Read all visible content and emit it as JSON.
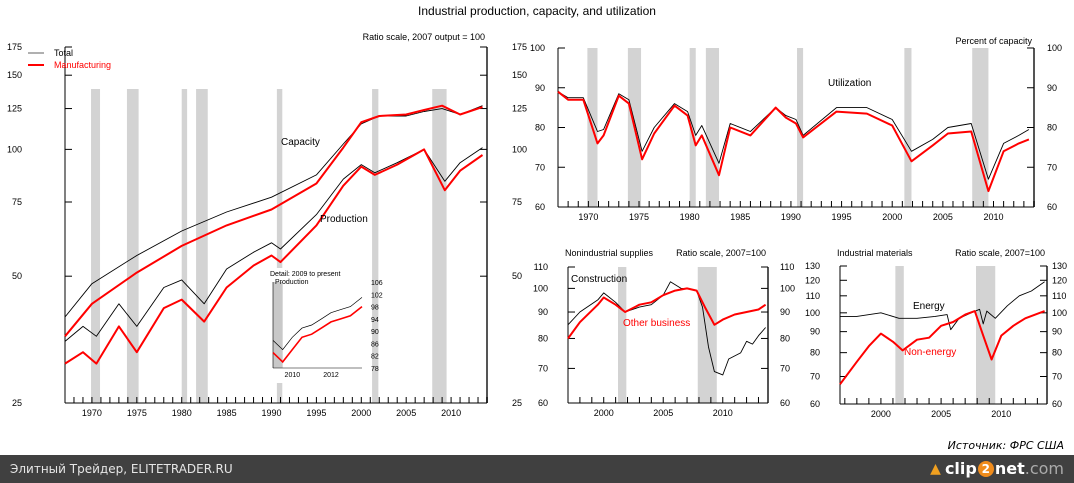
{
  "title": "Industrial production, capacity, and utilization",
  "source": "Источник: ФРС США",
  "footer": {
    "left": "Элитный Трейдер, ELITETRADER.RU",
    "logo_a": "clip",
    "logo_2": "2",
    "logo_b": "net",
    "logo_c": ".com"
  },
  "colors": {
    "total": "#000000",
    "manufacturing": "#ff0000",
    "recession": "#d3d3d3",
    "legend_total": "#b0b0b0"
  },
  "chart_data": [
    {
      "id": "main",
      "type": "line",
      "scale": "log",
      "note": "Ratio scale, 2007 output = 100",
      "legend": [
        {
          "name": "Total",
          "color": "#000000"
        },
        {
          "name": "Manufacturing",
          "color": "#ff0000"
        }
      ],
      "legend_position": "top-left",
      "annotations": [
        "Capacity",
        "Production"
      ],
      "xlim": [
        1967,
        2014
      ],
      "ylim": [
        25,
        175
      ],
      "y_ticks": [
        25,
        50,
        75,
        100,
        125,
        150,
        175
      ],
      "x_ticks": [
        1970,
        1975,
        1980,
        1985,
        1990,
        1995,
        2000,
        2005,
        2010
      ],
      "recessions": [
        [
          1969.9,
          1970.9
        ],
        [
          1973.9,
          1975.2
        ],
        [
          1980.0,
          1980.6
        ],
        [
          1981.6,
          1982.9
        ],
        [
          1990.6,
          1991.2
        ],
        [
          2001.2,
          2001.9
        ],
        [
          2007.9,
          2009.5
        ]
      ],
      "series": [
        {
          "name": "Total capacity",
          "color": "#000000",
          "x": [
            1967,
            1970,
            1975,
            1980,
            1985,
            1990,
            1995,
            1998,
            2000,
            2002,
            2005,
            2007,
            2009,
            2011,
            2013.5
          ],
          "y": [
            40,
            48,
            56,
            64,
            71,
            77,
            87,
            103,
            115,
            120,
            120,
            123,
            125,
            121,
            127
          ]
        },
        {
          "name": "Manufacturing capacity",
          "color": "#ff0000",
          "x": [
            1967,
            1970,
            1975,
            1980,
            1985,
            1990,
            1995,
            1998,
            2000,
            2002,
            2005,
            2007,
            2009,
            2011,
            2013.5
          ],
          "y": [
            36,
            43,
            51,
            59,
            66,
            72,
            83,
            101,
            116,
            120,
            121,
            124,
            127,
            121,
            126
          ]
        },
        {
          "name": "Total production",
          "color": "#000000",
          "x": [
            1967,
            1969,
            1970.5,
            1973,
            1975,
            1978,
            1980,
            1982.5,
            1985,
            1988,
            1990,
            1991,
            1995,
            1998,
            2000,
            2001.5,
            2004,
            2007,
            2009.3,
            2011,
            2013.5
          ],
          "y": [
            35,
            38,
            36,
            43,
            38,
            47,
            49,
            43,
            52,
            57,
            60,
            58,
            70,
            85,
            92,
            88,
            93,
            100,
            84,
            93,
            101
          ]
        },
        {
          "name": "Manufacturing production",
          "color": "#ff0000",
          "x": [
            1967,
            1969,
            1970.5,
            1973,
            1975,
            1978,
            1980,
            1982.5,
            1985,
            1988,
            1990,
            1991,
            1995,
            1998,
            2000,
            2001.5,
            2004,
            2007,
            2009.3,
            2011,
            2013.5
          ],
          "y": [
            31,
            33,
            31,
            38,
            33,
            42,
            44,
            39,
            47,
            53,
            56,
            54,
            66,
            82,
            91,
            87,
            92,
            100,
            80,
            89,
            97
          ]
        }
      ],
      "inset": {
        "title": "Detail: 2009 to present",
        "label": "Production",
        "xlim": [
          2009,
          2013.6
        ],
        "ylim": [
          78,
          106
        ],
        "y_ticks": [
          78,
          82,
          86,
          90,
          94,
          98,
          102,
          106
        ],
        "x_ticks": [
          2010,
          2012
        ],
        "recessions": [
          [
            2009,
            2009.5
          ]
        ],
        "series": [
          {
            "name": "Total",
            "color": "#000000",
            "x": [
              2009,
              2009.5,
              2010,
              2010.5,
              2011,
              2011.5,
              2012,
              2012.5,
              2013,
              2013.6
            ],
            "y": [
              87,
              84,
              88,
              91,
              92,
              94,
              96,
              97,
              98,
              101
            ]
          },
          {
            "name": "Manufacturing",
            "color": "#ff0000",
            "x": [
              2009,
              2009.5,
              2010,
              2010.5,
              2011,
              2011.5,
              2012,
              2012.5,
              2013,
              2013.6
            ],
            "y": [
              83,
              80,
              84,
              88,
              89,
              91,
              93,
              94,
              95,
              98
            ]
          }
        ]
      }
    },
    {
      "id": "utilization",
      "type": "line",
      "note": "Percent of capacity",
      "annotations": [
        "Utilization"
      ],
      "xlim": [
        1967,
        2014
      ],
      "ylim": [
        60,
        100
      ],
      "y_ticks": [
        60,
        70,
        80,
        90,
        100
      ],
      "x_ticks": [
        1970,
        1975,
        1980,
        1985,
        1990,
        1995,
        2000,
        2005,
        2010
      ],
      "recessions": [
        [
          1969.9,
          1970.9
        ],
        [
          1973.9,
          1975.2
        ],
        [
          1980.0,
          1980.6
        ],
        [
          1981.6,
          1982.9
        ],
        [
          1990.6,
          1991.2
        ],
        [
          2001.2,
          2001.9
        ],
        [
          2007.9,
          2009.5
        ]
      ],
      "series": [
        {
          "name": "Total",
          "color": "#000000",
          "x": [
            1967,
            1968,
            1969.5,
            1970.9,
            1971.5,
            1973,
            1974,
            1975.3,
            1976.5,
            1978.5,
            1979.8,
            1980.6,
            1981.2,
            1982.9,
            1984,
            1986,
            1988.5,
            1989.5,
            1990.5,
            1991.2,
            1994.5,
            1997.5,
            2000,
            2001.9,
            2004,
            2005.5,
            2007.8,
            2009.5,
            2011,
            2012.5,
            2013.5
          ],
          "y": [
            89,
            87.5,
            87.5,
            79,
            79.5,
            88.5,
            87,
            74,
            80,
            86,
            84,
            78,
            80.5,
            71,
            81,
            79,
            85,
            83,
            82,
            78,
            85,
            85,
            82,
            74,
            77,
            80,
            81,
            67,
            76,
            78,
            79.5
          ]
        },
        {
          "name": "Manufacturing",
          "color": "#ff0000",
          "x": [
            1967,
            1968,
            1969.5,
            1970.9,
            1971.5,
            1973,
            1974,
            1975.3,
            1976.5,
            1978.5,
            1979.8,
            1980.6,
            1981.2,
            1982.9,
            1984,
            1986,
            1988.5,
            1989.5,
            1990.5,
            1991.2,
            1994.5,
            1997.5,
            2000,
            2001.9,
            2004,
            2005.5,
            2007.8,
            2009.5,
            2011,
            2012.5,
            2013.5
          ],
          "y": [
            89,
            87,
            87,
            76,
            78,
            88,
            86,
            72,
            78.5,
            85.5,
            83,
            75.5,
            78,
            68,
            80,
            78,
            85,
            82.5,
            81,
            77.5,
            84,
            83.5,
            80.5,
            71.5,
            75.5,
            78.5,
            79,
            64,
            74,
            76,
            77
          ]
        }
      ]
    },
    {
      "id": "nonindustrial",
      "type": "line",
      "scale": "log",
      "title": "Nonindustrial supplies",
      "note": "Ratio scale, 2007=100",
      "annotations": [
        "Construction",
        "Other business"
      ],
      "xlim": [
        1997,
        2013.8
      ],
      "ylim": [
        60,
        110
      ],
      "y_ticks": [
        60,
        70,
        80,
        90,
        100,
        110
      ],
      "x_ticks": [
        2000,
        2005,
        2010
      ],
      "recessions": [
        [
          2001.2,
          2001.9
        ],
        [
          2007.9,
          2009.5
        ]
      ],
      "series": [
        {
          "name": "Construction",
          "color": "#000000",
          "x": [
            1997,
            1998,
            1999.5,
            2000,
            2001,
            2001.8,
            2003,
            2004,
            2005,
            2005.6,
            2006.5,
            2007,
            2007.8,
            2008.3,
            2008.8,
            2009.3,
            2010,
            2010.5,
            2011.5,
            2012,
            2012.5,
            2013,
            2013.6
          ],
          "y": [
            85,
            90,
            95,
            98,
            94,
            90,
            92,
            93,
            97,
            103,
            100,
            100,
            99,
            92,
            77,
            69,
            68,
            73,
            75,
            79,
            78,
            81,
            84
          ]
        },
        {
          "name": "Other business",
          "color": "#ff0000",
          "x": [
            1997,
            1998,
            1999.5,
            2000,
            2001,
            2001.8,
            2003,
            2004,
            2005,
            2006,
            2007,
            2007.8,
            2008.5,
            2009.3,
            2010,
            2011,
            2012,
            2013,
            2013.6
          ],
          "y": [
            80,
            86,
            93,
            96,
            93,
            90,
            93,
            94,
            97,
            99,
            100,
            99,
            92,
            85,
            87,
            89,
            90,
            91,
            93
          ]
        }
      ]
    },
    {
      "id": "industrial",
      "type": "line",
      "scale": "log",
      "title": "Industrial materials",
      "note": "Ratio scale, 2007=100",
      "annotations": [
        "Energy",
        "Non-energy"
      ],
      "xlim": [
        1996.6,
        2013.8
      ],
      "ylim": [
        60,
        130
      ],
      "y_ticks": [
        60,
        70,
        80,
        90,
        100,
        110,
        120,
        130
      ],
      "x_ticks": [
        2000,
        2005,
        2010
      ],
      "recessions": [
        [
          2001.2,
          2001.9
        ],
        [
          2007.9,
          2009.5
        ]
      ],
      "series": [
        {
          "name": "Energy",
          "color": "#000000",
          "x": [
            1996.6,
            1998,
            2000,
            2001.5,
            2003,
            2004.5,
            2005.5,
            2005.8,
            2006.5,
            2007.5,
            2008.2,
            2008.5,
            2008.8,
            2009.5,
            2010.5,
            2011.5,
            2012.5,
            2013.6
          ],
          "y": [
            98,
            98,
            100,
            97,
            97,
            98,
            99,
            91,
            97,
            100,
            102,
            94,
            101,
            97,
            104,
            110,
            113,
            119
          ]
        },
        {
          "name": "Non-energy",
          "color": "#ff0000",
          "x": [
            1996.6,
            1998,
            1999,
            2000,
            2001,
            2001.8,
            2003,
            2004,
            2005,
            2006,
            2007,
            2007.8,
            2008.5,
            2009.2,
            2010,
            2011,
            2012,
            2013.6
          ],
          "y": [
            67,
            76,
            83,
            89,
            85,
            81,
            86,
            87,
            93,
            95,
            99,
            101,
            88,
            77,
            88,
            93,
            97,
            101
          ]
        }
      ]
    }
  ]
}
